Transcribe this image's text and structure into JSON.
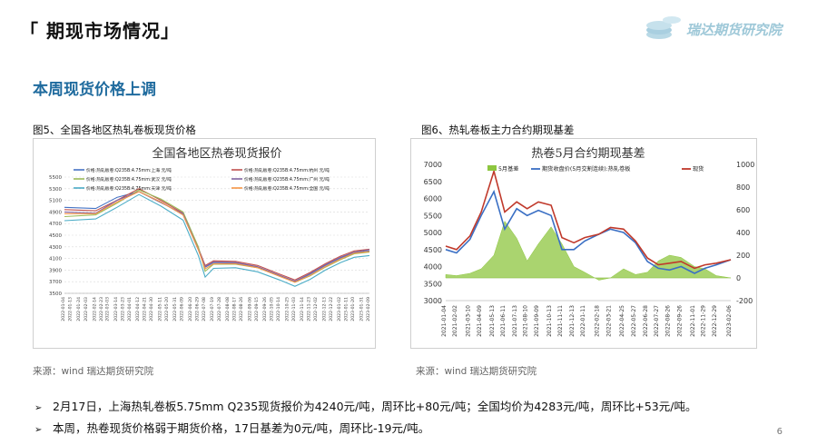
{
  "slide": {
    "title": "「 期现市场情况」",
    "brand": "瑞达期货研究院",
    "headline": "本周现货价格上调",
    "page_number": "6"
  },
  "figures": {
    "left_caption": "图5、全国各地区热轧卷板现货价格",
    "right_caption": "图6、热轧卷板主力合约期现基差",
    "left_source": "来源：wind   瑞达期货研究院",
    "right_source": "来源：wind   瑞达期货研究院"
  },
  "bullets": [
    "2月17日，上海热轧卷板5.75mm Q235现货报价为4240元/吨，周环比+80元/吨；全国均价为4283元/吨，周环比+53元/吨。",
    "本周，热卷现货价格弱于期货价格，17日基差为0元/吨，周环比-19元/吨。"
  ],
  "colors": {
    "headline": "#1f6b9e",
    "brand": "#9ec8d8",
    "shanghai": "#4472c4",
    "hangzhou": "#c0504d",
    "wuhan": "#9bbb59",
    "guangzhou": "#8064a2",
    "tianjin": "#4bacc6",
    "national": "#f79646",
    "basis": "#8dc63f",
    "futures": "#3a6fc4",
    "spot": "#c0392b"
  },
  "chart_data": [
    {
      "type": "line",
      "title": "全国各地区热卷现货报价",
      "legend_placement": "top-left",
      "ylim": [
        3500,
        5500
      ],
      "yticks": [
        3500,
        3700,
        3900,
        4100,
        4300,
        4500,
        4700,
        4900,
        5100,
        5300,
        5500
      ],
      "x_ticks": [
        "2022-01-04",
        "2022-01-13",
        "2022-01-24",
        "2022-02-03",
        "2022-02-14",
        "2022-02-23",
        "2022-03-03",
        "2022-03-14",
        "2022-03-23",
        "2022-04-01",
        "2022-04-12",
        "2022-04-21",
        "2022-04-30",
        "2022-05-11",
        "2022-05-20",
        "2022-05-31",
        "2022-06-09",
        "2022-06-20",
        "2022-06-29",
        "2022-07-08",
        "2022-07-19",
        "2022-07-28",
        "2022-08-08",
        "2022-08-17",
        "2022-08-26",
        "2022-09-06",
        "2022-09-15",
        "2022-09-26",
        "2022-10-05",
        "2022-10-14",
        "2022-10-25",
        "2022-11-03",
        "2022-11-14",
        "2022-11-23",
        "2022-12-02",
        "2022-12-13",
        "2022-12-22",
        "2023-01-02",
        "2023-01-11",
        "2023-01-20",
        "2023-01-31",
        "2023-02-09"
      ],
      "x": [
        "2022-01-04",
        "2022-02-14",
        "2022-03-14",
        "2022-04-12",
        "2022-05-11",
        "2022-06-09",
        "2022-06-29",
        "2022-07-08",
        "2022-07-19",
        "2022-08-17",
        "2022-09-15",
        "2022-10-14",
        "2022-11-03",
        "2022-11-23",
        "2022-12-13",
        "2023-01-02",
        "2023-01-20",
        "2023-02-09"
      ],
      "series": [
        {
          "name": "价格:热轧板卷:Q235B:4.75mm:上海 元/吨",
          "values": [
            4980,
            4960,
            5150,
            5250,
            5070,
            4850,
            4250,
            3950,
            4030,
            4020,
            3950,
            3800,
            3700,
            3830,
            3980,
            4110,
            4200,
            4230
          ]
        },
        {
          "name": "价格:热轧板卷:Q235B:4.75mm:杭州 元/吨",
          "values": [
            4940,
            4920,
            5100,
            5300,
            5100,
            4880,
            4280,
            3980,
            4060,
            4050,
            3980,
            3830,
            3730,
            3860,
            4010,
            4140,
            4230,
            4260
          ]
        },
        {
          "name": "价格:热轧板卷:Q235B:4.75mm:武汉 元/吨",
          "values": [
            4820,
            4850,
            5050,
            5280,
            5120,
            4900,
            4300,
            3880,
            4000,
            4000,
            3940,
            3800,
            3690,
            3800,
            3950,
            4080,
            4180,
            4210
          ]
        },
        {
          "name": "价格:热轧板卷:Q235B:4.75mm:广州 元/吨",
          "values": [
            4900,
            4880,
            5100,
            5250,
            5060,
            4870,
            4260,
            3960,
            4040,
            4030,
            3960,
            3810,
            3710,
            3840,
            3990,
            4120,
            4210,
            4250
          ]
        },
        {
          "name": "价格:热轧板卷:Q235B:4.75mm:天津 元/吨",
          "values": [
            4750,
            4780,
            4980,
            5200,
            5000,
            4760,
            4150,
            3780,
            3930,
            3940,
            3870,
            3730,
            3620,
            3740,
            3900,
            4030,
            4120,
            4150
          ]
        },
        {
          "name": "价格:热轧板卷:Q235B:4.75mm:全国 元/吨",
          "values": [
            4870,
            4870,
            5070,
            5250,
            5070,
            4850,
            4250,
            3920,
            4010,
            4010,
            3940,
            3790,
            3690,
            3810,
            3960,
            4090,
            4190,
            4220
          ]
        }
      ]
    },
    {
      "type": "line",
      "title": "热卷5月合约期现基差",
      "legend_placement": "top",
      "ylim": [
        3000,
        7000
      ],
      "y2lim": [
        -200,
        1000
      ],
      "yticks": [
        3000,
        3500,
        4000,
        4500,
        5000,
        5500,
        6000,
        6500,
        7000
      ],
      "y2ticks": [
        -200,
        0,
        200,
        400,
        600,
        800,
        1000
      ],
      "x_ticks": [
        "2021-01-04",
        "2021-02-02",
        "2021-03-10",
        "2021-04-09",
        "2021-05-13",
        "2021-06-11",
        "2021-07-13",
        "2021-08-10",
        "2021-09-09",
        "2021-10-13",
        "2021-11-11",
        "2021-12-13",
        "2022-01-11",
        "2022-02-18",
        "2022-03-21",
        "2022-04-25",
        "2022-05-27",
        "2022-06-28",
        "2022-07-27",
        "2022-08-26",
        "2022-09-26",
        "2022-11-01",
        "2022-11-29",
        "2022-12-29",
        "2023-02-06"
      ],
      "x": [
        "2021-01-04",
        "2021-02-02",
        "2021-03-10",
        "2021-04-09",
        "2021-05-13",
        "2021-06-11",
        "2021-07-13",
        "2021-08-10",
        "2021-09-09",
        "2021-10-13",
        "2021-11-11",
        "2021-12-13",
        "2022-01-11",
        "2022-02-18",
        "2022-03-21",
        "2022-04-25",
        "2022-05-27",
        "2022-06-28",
        "2022-07-27",
        "2022-08-26",
        "2022-09-26",
        "2022-11-01",
        "2022-11-29",
        "2022-12-29",
        "2023-02-06"
      ],
      "series": [
        {
          "name": "5月基差",
          "axis": "right",
          "kind": "area",
          "values": [
            30,
            20,
            40,
            80,
            200,
            500,
            350,
            150,
            300,
            450,
            300,
            100,
            50,
            -20,
            0,
            80,
            30,
            50,
            150,
            200,
            180,
            100,
            80,
            20,
            0
          ]
        },
        {
          "name": "期货收盘价(5月交割连续):热轧卷板",
          "axis": "left",
          "values": [
            4500,
            4400,
            4800,
            5500,
            6200,
            5100,
            5700,
            5500,
            5650,
            5500,
            4500,
            4500,
            4750,
            4950,
            5100,
            5000,
            4700,
            4150,
            3950,
            3900,
            4000,
            3800,
            3950,
            4050,
            4200
          ]
        },
        {
          "name": "现货",
          "axis": "left",
          "values": [
            4600,
            4500,
            4900,
            5600,
            6800,
            5600,
            5900,
            5700,
            5900,
            5800,
            4850,
            4700,
            4850,
            4950,
            5150,
            5100,
            4750,
            4250,
            4050,
            4100,
            4150,
            3950,
            4050,
            4100,
            4200
          ]
        }
      ]
    }
  ]
}
